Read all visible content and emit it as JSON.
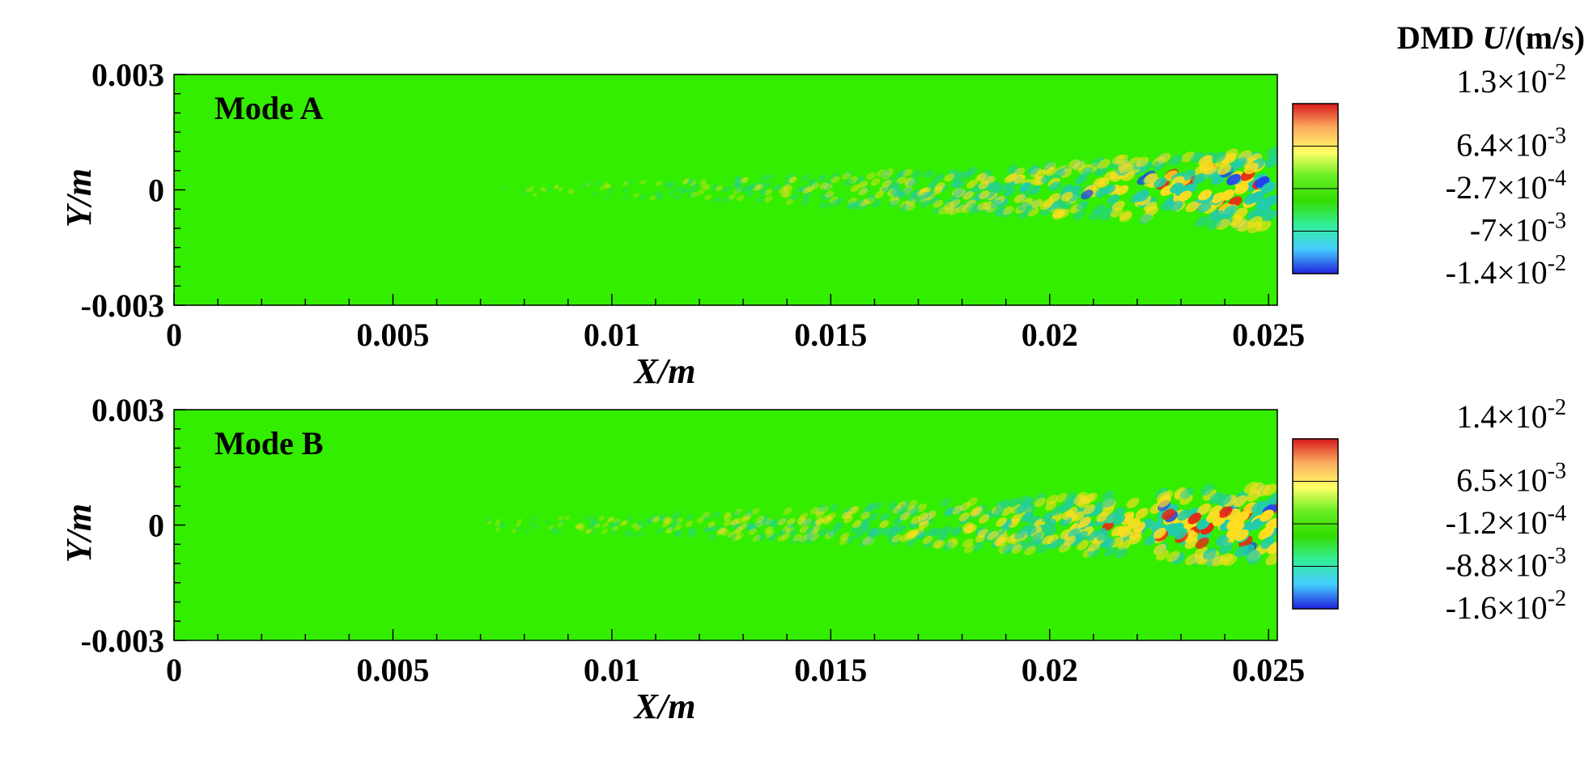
{
  "chart_data": [
    {
      "type": "heatmap",
      "panel_label": "Mode A",
      "xlabel": "X/m",
      "ylabel": "Y/m",
      "xlim": [
        0,
        0.0252
      ],
      "ylim": [
        -0.003,
        0.003
      ],
      "x_ticks": [
        0,
        0.005,
        0.01,
        0.015,
        0.02,
        0.025
      ],
      "x_tick_labels": [
        "0",
        "0.005",
        "0.01",
        "0.015",
        "0.02",
        "0.025"
      ],
      "y_ticks": [
        0.003,
        0,
        -0.003
      ],
      "y_tick_labels": [
        "0.003",
        "0",
        "-0.003"
      ],
      "colorbar": {
        "title_prefix": "DMD ",
        "title_var": "U",
        "title_unit": "/(m/s)",
        "labels": [
          "1.3×10-2",
          "6.4×10-3",
          "-2.7×10-4",
          "-7×10-3",
          "-1.4×10-2"
        ],
        "label_mantissas": [
          "1.3",
          "6.4",
          "-2.7",
          "-7",
          "-1.4"
        ],
        "label_exponents": [
          "-2",
          "-3",
          "-4",
          "-3",
          "-2"
        ],
        "colors": [
          "#d7191c",
          "#fdae61",
          "#ffff66",
          "#66ee22",
          "#33dd00",
          "#33ee99",
          "#44ccff",
          "#2222dd"
        ]
      },
      "field_description_colors": {
        "background": "#33ee00",
        "high": "#ee2211",
        "mid_high": "#ffdd22",
        "mid_low": "#22ccaa",
        "low": "#2244ee"
      },
      "structure": {
        "onset_x": 0.0075,
        "growth_end_x": 0.0252,
        "half_width_end": 0.0009
      }
    },
    {
      "type": "heatmap",
      "panel_label": "Mode B",
      "xlabel": "X/m",
      "ylabel": "Y/m",
      "xlim": [
        0,
        0.0252
      ],
      "ylim": [
        -0.003,
        0.003
      ],
      "x_ticks": [
        0,
        0.005,
        0.01,
        0.015,
        0.02,
        0.025
      ],
      "x_tick_labels": [
        "0",
        "0.005",
        "0.01",
        "0.015",
        "0.02",
        "0.025"
      ],
      "y_ticks": [
        0.003,
        0,
        -0.003
      ],
      "y_tick_labels": [
        "0.003",
        "0",
        "-0.003"
      ],
      "colorbar": {
        "title_prefix": "",
        "title_var": "",
        "title_unit": "",
        "labels": [
          "1.4×10-2",
          "6.5×10-3",
          "-1.2×10-4",
          "-8.8×10-3",
          "-1.6×10-2"
        ],
        "label_mantissas": [
          "1.4",
          "6.5",
          "-1.2",
          "-8.8",
          "-1.6"
        ],
        "label_exponents": [
          "-2",
          "-3",
          "-4",
          "-3",
          "-2"
        ],
        "colors": [
          "#d7191c",
          "#fdae61",
          "#ffff66",
          "#66ee22",
          "#33dd00",
          "#33ee99",
          "#44ccff",
          "#2222dd"
        ]
      },
      "field_description_colors": {
        "background": "#33ee00",
        "high": "#ee2211",
        "mid_high": "#ffdd22",
        "mid_low": "#22ccaa",
        "low": "#2244ee"
      },
      "structure": {
        "onset_x": 0.006,
        "growth_end_x": 0.0252,
        "half_width_end": 0.0009
      }
    }
  ]
}
